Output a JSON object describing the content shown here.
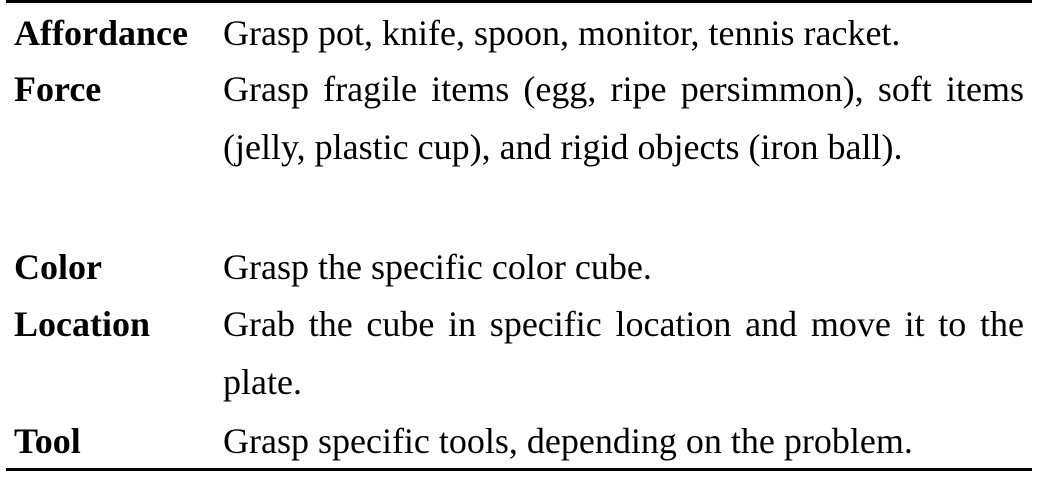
{
  "table": {
    "rows": [
      {
        "category": "Affordance",
        "description": "Grasp pot, knife, spoon, monitor, tennis racket."
      },
      {
        "category": "Force",
        "description": "Grasp fragile items (egg, ripe persimmon), soft items (jelly, plastic cup), and rigid objects (iron ball)."
      },
      {
        "category": "Color",
        "description": "Grasp the specific color cube."
      },
      {
        "category": "Location",
        "description": "Grab the cube in specific location and move it to the plate."
      },
      {
        "category": "Tool",
        "description": "Grasp specific tools, depending on the problem."
      }
    ]
  }
}
